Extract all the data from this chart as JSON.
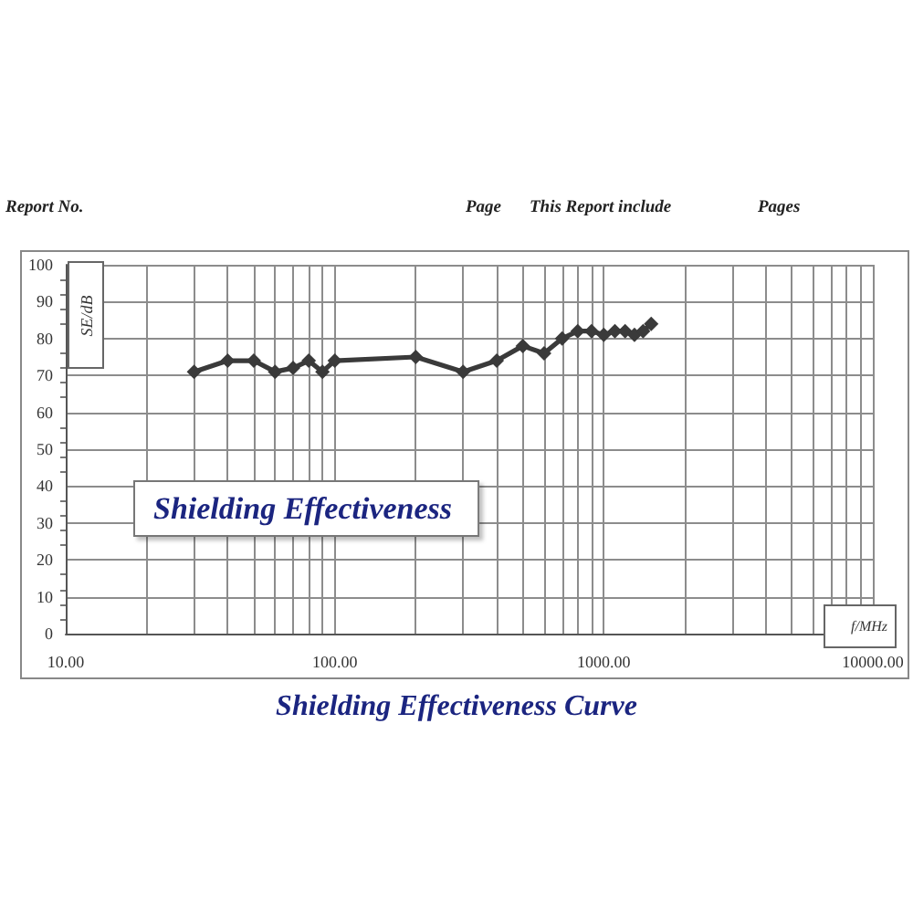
{
  "chart_data": {
    "type": "line",
    "title": "Shielding Effectiveness Curve",
    "xlabel": "f/MHz",
    "ylabel": "SE/dB",
    "annotations": [
      "Report No.",
      "Page",
      "This Report include",
      "Pages",
      "Shielding Effectiveness"
    ],
    "x": [
      30,
      40,
      50,
      60,
      70,
      80,
      90,
      100,
      200,
      300,
      400,
      500,
      600,
      700,
      800,
      900,
      1000,
      1100,
      1200,
      1300,
      1400,
      1500
    ],
    "values": [
      71,
      74,
      74,
      71,
      72,
      74,
      71,
      74,
      75,
      71,
      74,
      78,
      76,
      80,
      82,
      82,
      81,
      82,
      82,
      81,
      82,
      84
    ],
    "color": "#3a3a3a",
    "marker": "diamond",
    "line_style": "solid",
    "xlim": [
      10,
      10000
    ],
    "xticks": [
      {
        "value": 10,
        "label": "10.00"
      },
      {
        "value": 100,
        "label": "100.00"
      },
      {
        "value": 1000,
        "label": "1000.00"
      },
      {
        "value": 10000,
        "label": "10000.00"
      }
    ],
    "ylim": [
      0,
      100
    ],
    "yticks": [
      0,
      10,
      20,
      30,
      40,
      50,
      60,
      70,
      80,
      90,
      100
    ],
    "log": "x",
    "grid": true
  }
}
